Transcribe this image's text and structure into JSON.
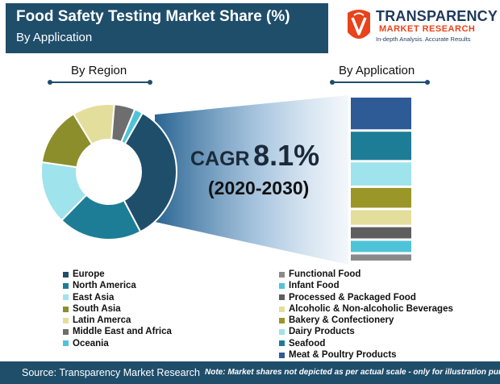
{
  "header": {
    "title": "Food Safety Testing Market Share (%)",
    "subtitle": "By Application"
  },
  "logo": {
    "icon": "transparency-logo-mark",
    "name_line1": "TRANSPARENCY",
    "name_line2": "MARKET RESEARCH",
    "tagline": "In-depth Analysis. Accurate Results"
  },
  "highlight": {
    "cagr_label": "CAGR",
    "cagr_value": "8.1%",
    "period": "(2020-2030)"
  },
  "chart_data": [
    {
      "type": "pie",
      "title": "By Region",
      "categories": [
        "Europe",
        "North America",
        "East Asia",
        "South Asia",
        "Latin Amerca",
        "Middle East and Africa",
        "Oceania"
      ],
      "values": [
        34,
        20,
        15,
        14,
        10,
        5,
        2
      ],
      "colors": [
        "#1f4e6b",
        "#1d7d96",
        "#9fe3ec",
        "#8c8e2c",
        "#e4de9c",
        "#6e6e6e",
        "#4fc4d8"
      ]
    },
    {
      "type": "bar",
      "title": "By Application",
      "stacked": true,
      "categories": [
        "Meat & Poultry Products",
        "Seafood",
        "Dairy Products",
        "Bakery & Confectionery",
        "Alcoholic & Non-alcoholic Beverages",
        "Processed & Packaged Food",
        "Infant Food",
        "Functional Food"
      ],
      "values": [
        20,
        18,
        15,
        13,
        10,
        8,
        8,
        5
      ],
      "colors": [
        "#2e5a95",
        "#1d7d96",
        "#9fe3ec",
        "#9a9628",
        "#e4de9c",
        "#5e5e5e",
        "#4fc4d8",
        "#8a8a8a"
      ]
    }
  ],
  "legend_application": [
    {
      "label": "Functional Food",
      "color": "#8a8a8a"
    },
    {
      "label": "Infant Food",
      "color": "#4fc4d8"
    },
    {
      "label": "Processed & Packaged Food",
      "color": "#5e5e5e"
    },
    {
      "label": "Alcoholic & Non-alcoholic Beverages",
      "color": "#e4de9c"
    },
    {
      "label": "Bakery & Confectionery",
      "color": "#9a9628"
    },
    {
      "label": "Dairy Products",
      "color": "#9fe3ec"
    },
    {
      "label": "Seafood",
      "color": "#1d7d96"
    },
    {
      "label": "Meat & Poultry Products",
      "color": "#2e5a95"
    }
  ],
  "footer": {
    "source": "Source: Transparency Market Research",
    "note": "Note: Market shares not depicted as per actual scale - only for illustration purposes"
  }
}
